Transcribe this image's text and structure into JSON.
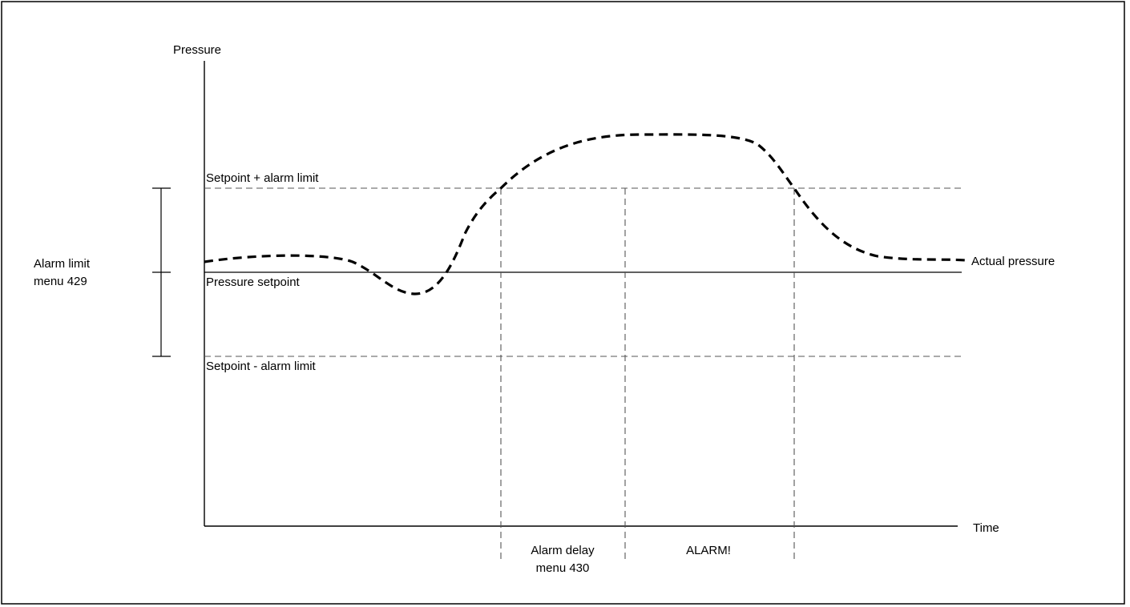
{
  "axes": {
    "y_label": "Pressure",
    "x_label": "Time"
  },
  "levels": {
    "upper_label": "Setpoint + alarm limit",
    "setpoint_label": "Pressure setpoint",
    "lower_label": "Setpoint - alarm limit"
  },
  "alarm_limit": {
    "line1": "Alarm limit",
    "line2": "menu 429"
  },
  "curve_label": "Actual pressure",
  "phases": {
    "delay_line1": "Alarm delay",
    "delay_line2": "menu 430",
    "alarm": "ALARM!"
  }
}
